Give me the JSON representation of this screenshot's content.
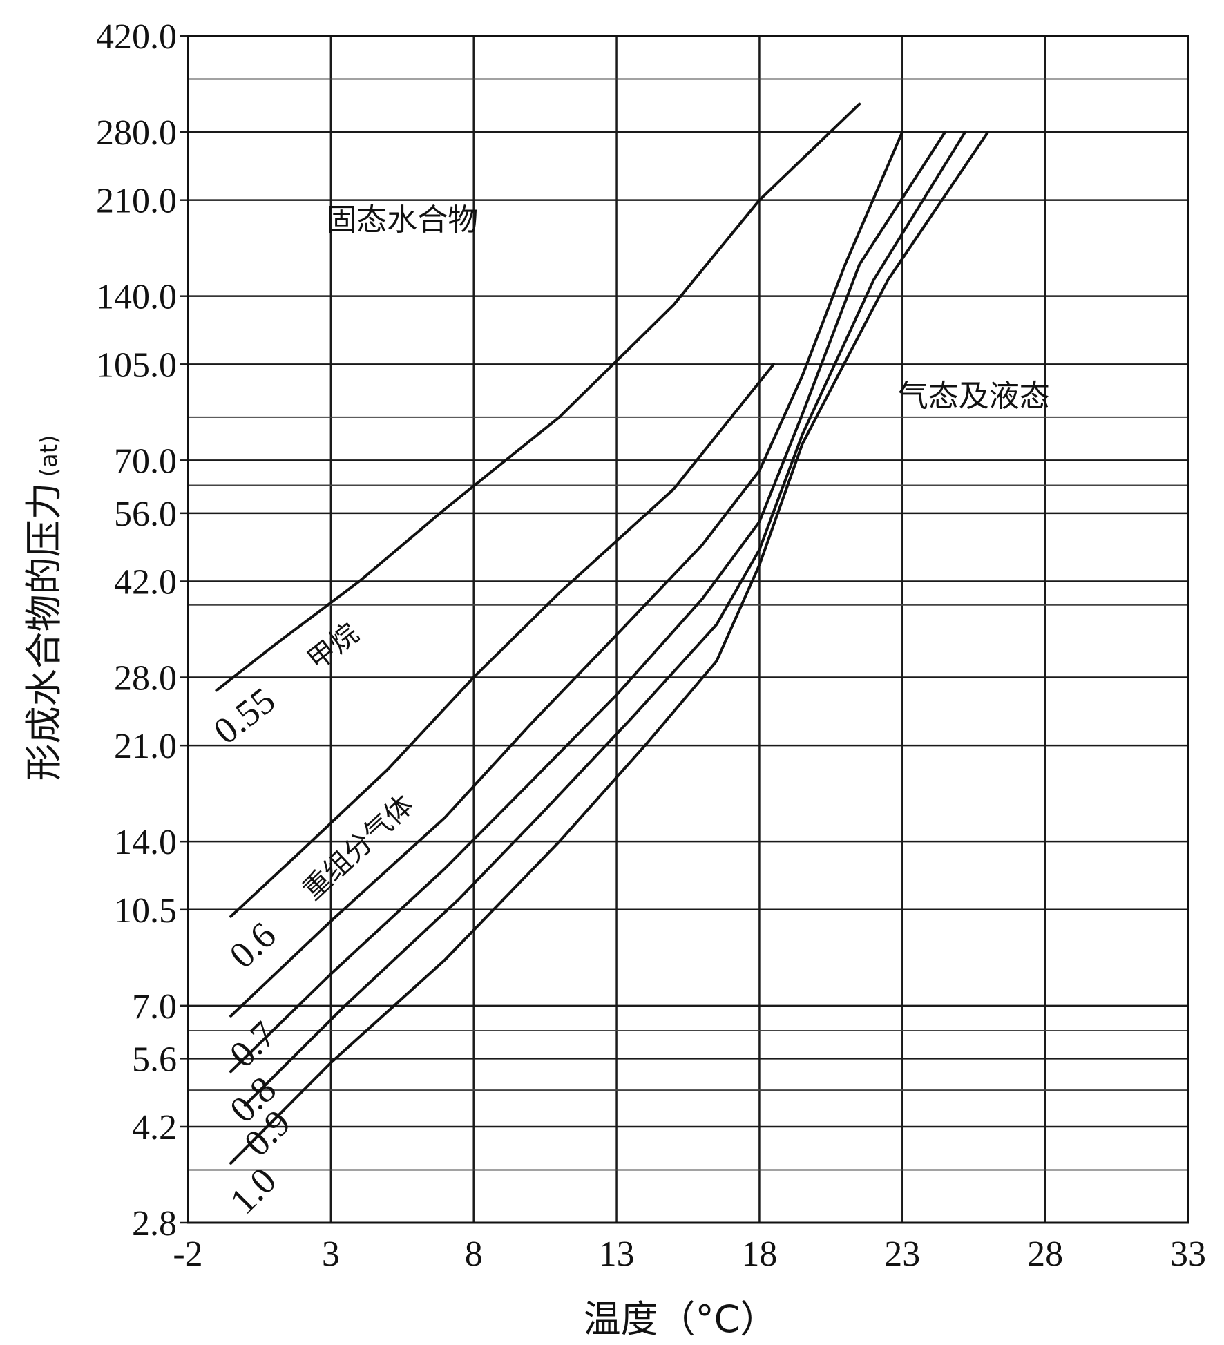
{
  "chart_data": {
    "type": "line",
    "xlabel": "温度（°C）",
    "ylabel": "形成水合物的压力",
    "ylabel_unit": "(at)",
    "xlim": [
      -2,
      33
    ],
    "ylim": [
      2.8,
      420.0
    ],
    "y_scale": "log",
    "grid": true,
    "x_ticks": [
      "-2",
      "3",
      "8",
      "13",
      "18",
      "23",
      "28",
      "33"
    ],
    "y_ticks": [
      "2.8",
      "4.2",
      "5.6",
      "7.0",
      "10.5",
      "14.0",
      "21.0",
      "28.0",
      "42.0",
      "56.0",
      "70.0",
      "105.0",
      "140.0",
      "210.0",
      "280.0",
      "420.0"
    ],
    "y_minor_grid": [
      3.5,
      4.9,
      6.3,
      38.0,
      63.0,
      84.0,
      350.0
    ],
    "regions": [
      {
        "label": "固态水合物",
        "x": 5.5,
        "y": 185
      },
      {
        "label": "气态及液态",
        "x": 25.5,
        "y": 88
      }
    ],
    "series": [
      {
        "name": "0.55",
        "note": "甲烷",
        "x": [
          -1,
          1,
          4,
          7,
          11,
          15,
          18,
          21.5
        ],
        "y": [
          26.5,
          32,
          42,
          57,
          84,
          135,
          210,
          315
        ]
      },
      {
        "name": "0.6",
        "note": "重组分气体",
        "x": [
          -0.5,
          2,
          5,
          8,
          11,
          15,
          18.5
        ],
        "y": [
          10.2,
          13.5,
          19,
          28,
          40,
          62,
          105
        ]
      },
      {
        "name": "0.7",
        "x": [
          -0.5,
          3,
          7,
          10,
          13,
          16,
          18,
          19.5,
          21,
          23
        ],
        "y": [
          6.7,
          10,
          15.5,
          23,
          33.5,
          49,
          67,
          100,
          160,
          280
        ]
      },
      {
        "name": "0.8",
        "x": [
          -0.5,
          3,
          7,
          10,
          13,
          16,
          18,
          19.5,
          21.5,
          24.5
        ],
        "y": [
          5.3,
          8,
          12.5,
          18,
          26,
          39,
          54,
          85,
          160,
          280
        ]
      },
      {
        "name": "0.9",
        "x": [
          0,
          3.5,
          7.5,
          10.5,
          13.5,
          16.5,
          18,
          19.5,
          22,
          25.2
        ],
        "y": [
          4.6,
          7,
          11,
          16,
          23.5,
          35,
          48,
          78,
          150,
          280
        ]
      },
      {
        "name": "1.0",
        "x": [
          -0.5,
          3,
          7,
          11,
          14,
          16.5,
          18,
          19.5,
          22.5,
          26
        ],
        "y": [
          3.6,
          5.5,
          8.5,
          14,
          21,
          30,
          45,
          75,
          150,
          280
        ]
      }
    ]
  }
}
